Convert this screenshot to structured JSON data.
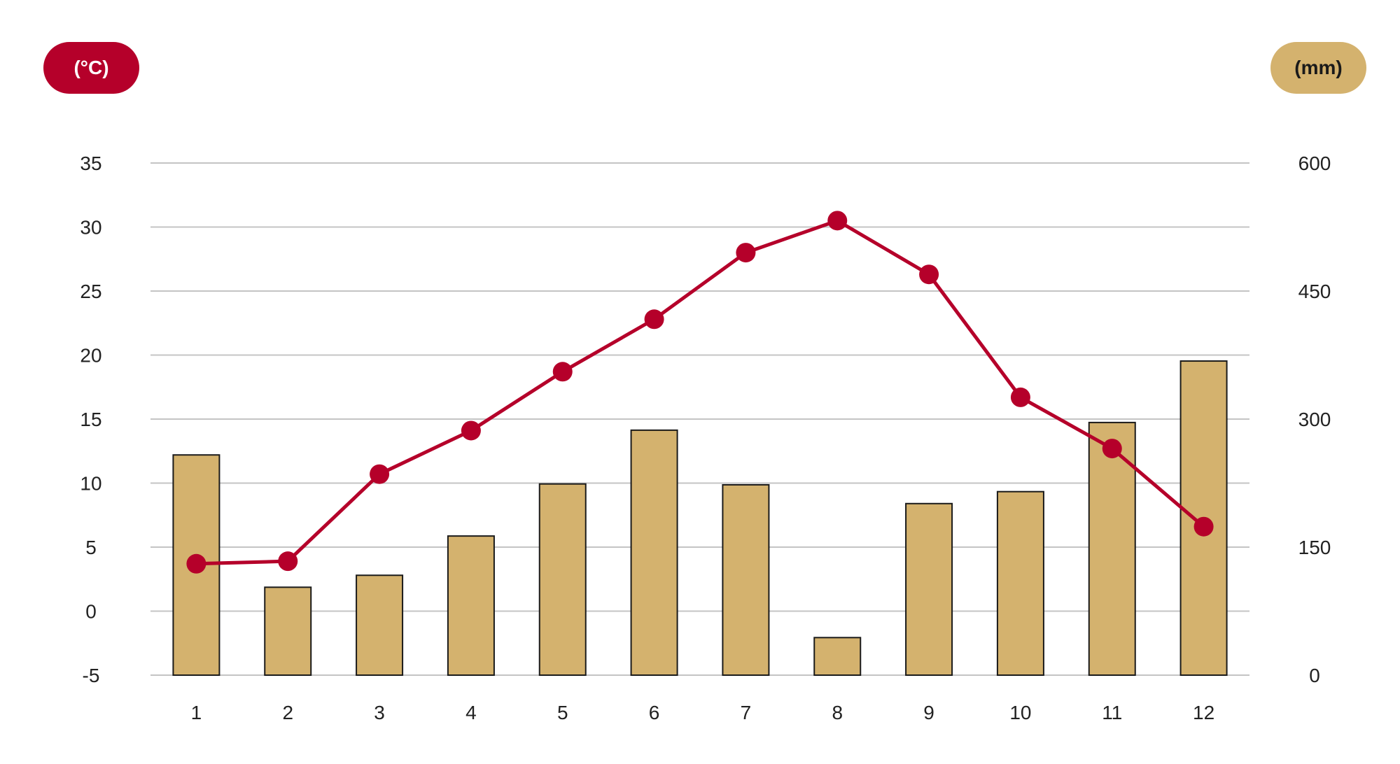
{
  "colors": {
    "temperature": "#b5002a",
    "precipitation_fill": "#d4b26e",
    "bar_stroke": "#1a1a1a",
    "grid": "#c4c4c4",
    "text": "#222222",
    "left_badge_text": "#ffffff",
    "right_badge_text": "#1a1a1a"
  },
  "badges": {
    "left": "(°C)",
    "right": "(mm)"
  },
  "chart_data": {
    "type": "bar+line",
    "title": "",
    "categories": [
      "1",
      "2",
      "3",
      "4",
      "5",
      "6",
      "7",
      "8",
      "9",
      "10",
      "11",
      "12"
    ],
    "left_axis": {
      "label": "(°C)",
      "ylim": [
        -5,
        35
      ],
      "ticks": [
        35,
        30,
        25,
        20,
        15,
        10,
        5,
        0,
        -5
      ]
    },
    "right_axis": {
      "label": "(mm)",
      "ylim": [
        0,
        600
      ],
      "ticks": [
        600,
        450,
        300,
        150,
        0
      ]
    },
    "grid": true,
    "series": [
      {
        "type": "bar",
        "axis": "right",
        "values": [
          258,
          103,
          117,
          163,
          224,
          287,
          223,
          44,
          201,
          215,
          296,
          368
        ]
      },
      {
        "type": "line",
        "axis": "left",
        "values": [
          3.7,
          3.9,
          10.7,
          14.1,
          18.7,
          22.8,
          28.0,
          30.5,
          26.3,
          16.7,
          12.7,
          6.6
        ]
      }
    ]
  }
}
